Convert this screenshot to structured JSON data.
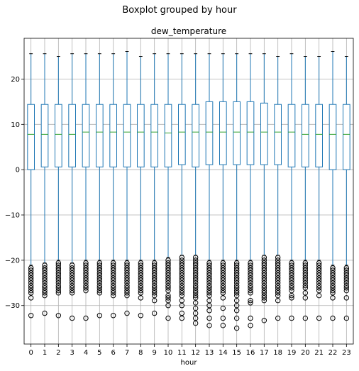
{
  "chart_data": {
    "type": "box",
    "suptitle": "Boxplot grouped by hour",
    "title": "dew_temperature",
    "xlabel": "hour",
    "ylabel": "",
    "ylim": [
      -38.5,
      29
    ],
    "yticks": [
      -30,
      -20,
      -10,
      0,
      10,
      20
    ],
    "grid": true,
    "colors": {
      "box": "#1f77b4",
      "median": "#2ca02c",
      "grid": "#b0b0b0",
      "outlier": "#000000"
    },
    "categories": [
      "0",
      "1",
      "2",
      "3",
      "4",
      "5",
      "6",
      "7",
      "8",
      "9",
      "10",
      "11",
      "12",
      "13",
      "14",
      "15",
      "16",
      "17",
      "18",
      "19",
      "20",
      "21",
      "22",
      "23"
    ],
    "boxes": [
      {
        "whislo": -21.1,
        "q1": 0.0,
        "med": 7.8,
        "q3": 14.4,
        "whishi": 25.6,
        "fliers": [
          -21.7,
          -22.2,
          -22.8,
          -23.3,
          -23.9,
          -24.4,
          -25.0,
          -25.6,
          -26.1,
          -26.7,
          -27.2,
          -28.3,
          -32.2
        ]
      },
      {
        "whislo": -20.6,
        "q1": 0.6,
        "med": 7.8,
        "q3": 14.4,
        "whishi": 25.6,
        "fliers": [
          -21.1,
          -21.7,
          -22.2,
          -22.8,
          -23.3,
          -23.9,
          -24.4,
          -25.0,
          -25.6,
          -26.1,
          -26.7,
          -27.2,
          -27.8,
          -31.7
        ]
      },
      {
        "whislo": -20.0,
        "q1": 0.6,
        "med": 7.8,
        "q3": 14.4,
        "whishi": 25.0,
        "fliers": [
          -20.6,
          -21.1,
          -21.7,
          -22.2,
          -22.8,
          -23.3,
          -23.9,
          -24.4,
          -25.0,
          -25.6,
          -26.1,
          -26.7,
          -27.2,
          -32.2
        ]
      },
      {
        "whislo": -20.6,
        "q1": 0.6,
        "med": 7.8,
        "q3": 14.4,
        "whishi": 25.6,
        "fliers": [
          -21.1,
          -21.7,
          -22.2,
          -22.8,
          -23.3,
          -23.9,
          -24.4,
          -25.0,
          -25.6,
          -26.1,
          -26.7,
          -27.2,
          -32.8
        ]
      },
      {
        "whislo": -20.0,
        "q1": 0.6,
        "med": 8.3,
        "q3": 14.4,
        "whishi": 25.6,
        "fliers": [
          -20.6,
          -21.1,
          -21.7,
          -22.2,
          -22.8,
          -23.3,
          -23.9,
          -24.4,
          -25.0,
          -25.6,
          -26.1,
          -26.7,
          -32.8
        ]
      },
      {
        "whislo": -20.0,
        "q1": 0.6,
        "med": 8.3,
        "q3": 14.4,
        "whishi": 25.6,
        "fliers": [
          -20.6,
          -21.1,
          -21.7,
          -22.2,
          -22.8,
          -23.3,
          -23.9,
          -24.4,
          -25.0,
          -25.6,
          -26.1,
          -26.7,
          -27.2,
          -32.2
        ]
      },
      {
        "whislo": -20.0,
        "q1": 0.6,
        "med": 8.3,
        "q3": 14.4,
        "whishi": 25.6,
        "fliers": [
          -20.6,
          -21.1,
          -21.7,
          -22.2,
          -22.8,
          -23.3,
          -23.9,
          -24.4,
          -25.0,
          -25.6,
          -26.1,
          -26.7,
          -27.2,
          -27.8,
          -32.2
        ]
      },
      {
        "whislo": -20.0,
        "q1": 0.6,
        "med": 8.3,
        "q3": 14.4,
        "whishi": 26.1,
        "fliers": [
          -20.6,
          -21.1,
          -21.7,
          -22.2,
          -22.8,
          -23.3,
          -23.9,
          -24.4,
          -25.0,
          -25.6,
          -26.1,
          -26.7,
          -27.2,
          -27.8,
          -31.7
        ]
      },
      {
        "whislo": -20.0,
        "q1": 0.6,
        "med": 8.3,
        "q3": 14.4,
        "whishi": 25.0,
        "fliers": [
          -20.6,
          -21.1,
          -21.7,
          -22.2,
          -22.8,
          -23.3,
          -23.9,
          -24.4,
          -25.0,
          -25.6,
          -26.1,
          -26.7,
          -27.2,
          -28.3,
          -32.2
        ]
      },
      {
        "whislo": -20.0,
        "q1": 0.6,
        "med": 8.3,
        "q3": 14.4,
        "whishi": 25.6,
        "fliers": [
          -20.6,
          -21.1,
          -21.7,
          -22.2,
          -22.8,
          -23.3,
          -23.9,
          -24.4,
          -25.0,
          -25.6,
          -26.1,
          -26.7,
          -27.2,
          -27.8,
          -28.9,
          -31.7
        ]
      },
      {
        "whislo": -19.4,
        "q1": 0.6,
        "med": 8.1,
        "q3": 14.4,
        "whishi": 25.6,
        "fliers": [
          -20.0,
          -20.6,
          -21.1,
          -21.7,
          -22.2,
          -22.8,
          -23.3,
          -23.9,
          -24.4,
          -25.0,
          -25.6,
          -26.1,
          -26.7,
          -27.8,
          -28.3,
          -28.9,
          -30.0,
          -32.8
        ]
      },
      {
        "whislo": -18.9,
        "q1": 1.1,
        "med": 8.3,
        "q3": 14.4,
        "whishi": 25.6,
        "fliers": [
          -19.4,
          -20.0,
          -20.6,
          -21.1,
          -21.7,
          -22.2,
          -22.8,
          -23.3,
          -23.9,
          -24.4,
          -25.0,
          -25.6,
          -26.1,
          -26.7,
          -27.2,
          -27.8,
          -28.9,
          -30.0,
          -31.7,
          -32.8
        ]
      },
      {
        "whislo": -18.9,
        "q1": 0.6,
        "med": 8.3,
        "q3": 14.4,
        "whishi": 25.6,
        "fliers": [
          -19.4,
          -20.0,
          -20.6,
          -21.1,
          -21.7,
          -22.2,
          -22.8,
          -23.3,
          -23.9,
          -24.4,
          -25.0,
          -25.6,
          -26.1,
          -26.7,
          -27.2,
          -27.8,
          -28.3,
          -29.4,
          -30.6,
          -31.7,
          -32.8,
          -33.9
        ]
      },
      {
        "whislo": -20.0,
        "q1": 1.1,
        "med": 8.3,
        "q3": 15.0,
        "whishi": 25.6,
        "fliers": [
          -20.6,
          -21.1,
          -21.7,
          -22.2,
          -22.8,
          -23.3,
          -23.9,
          -24.4,
          -25.0,
          -25.6,
          -26.1,
          -26.7,
          -27.2,
          -27.8,
          -28.9,
          -30.0,
          -31.1,
          -32.8,
          -34.4
        ]
      },
      {
        "whislo": -20.0,
        "q1": 1.1,
        "med": 8.3,
        "q3": 15.0,
        "whishi": 25.6,
        "fliers": [
          -20.6,
          -21.1,
          -21.7,
          -22.2,
          -22.8,
          -23.3,
          -23.9,
          -24.4,
          -25.0,
          -25.6,
          -26.1,
          -26.7,
          -27.2,
          -28.3,
          -30.6,
          -32.8,
          -34.4
        ]
      },
      {
        "whislo": -20.0,
        "q1": 1.1,
        "med": 8.3,
        "q3": 15.0,
        "whishi": 25.6,
        "fliers": [
          -20.6,
          -21.1,
          -21.7,
          -22.2,
          -22.8,
          -23.3,
          -23.9,
          -24.4,
          -25.0,
          -25.6,
          -26.1,
          -26.7,
          -27.2,
          -27.8,
          -28.9,
          -30.0,
          -31.1,
          -32.8,
          -35.0
        ]
      },
      {
        "whislo": -20.0,
        "q1": 1.1,
        "med": 8.3,
        "q3": 15.0,
        "whishi": 25.6,
        "fliers": [
          -20.6,
          -21.1,
          -21.7,
          -22.2,
          -22.8,
          -23.3,
          -23.9,
          -24.4,
          -25.0,
          -25.6,
          -26.1,
          -26.7,
          -27.2,
          -28.9,
          -29.4,
          -32.8,
          -34.4
        ]
      },
      {
        "whislo": -18.9,
        "q1": 1.1,
        "med": 8.3,
        "q3": 14.7,
        "whishi": 25.6,
        "fliers": [
          -19.4,
          -20.0,
          -20.6,
          -21.1,
          -21.7,
          -22.2,
          -22.8,
          -23.3,
          -23.9,
          -24.4,
          -25.0,
          -25.6,
          -26.1,
          -26.7,
          -27.2,
          -27.8,
          -28.3,
          -28.9,
          -33.3
        ]
      },
      {
        "whislo": -18.9,
        "q1": 1.1,
        "med": 8.3,
        "q3": 14.4,
        "whishi": 25.0,
        "fliers": [
          -19.4,
          -20.0,
          -20.6,
          -21.1,
          -21.7,
          -22.2,
          -22.8,
          -23.3,
          -23.9,
          -24.4,
          -25.0,
          -25.6,
          -26.1,
          -26.7,
          -27.2,
          -27.8,
          -28.9,
          -32.8
        ]
      },
      {
        "whislo": -20.0,
        "q1": 0.6,
        "med": 8.3,
        "q3": 14.4,
        "whishi": 25.6,
        "fliers": [
          -20.6,
          -21.1,
          -21.7,
          -22.2,
          -22.8,
          -23.3,
          -23.9,
          -24.4,
          -25.0,
          -25.6,
          -26.1,
          -26.7,
          -27.8,
          -28.3,
          -32.8
        ]
      },
      {
        "whislo": -20.0,
        "q1": 0.6,
        "med": 7.8,
        "q3": 14.4,
        "whishi": 25.0,
        "fliers": [
          -20.6,
          -21.1,
          -21.7,
          -22.2,
          -22.8,
          -23.3,
          -23.9,
          -24.4,
          -25.0,
          -25.6,
          -26.1,
          -27.2,
          -28.3,
          -32.8
        ]
      },
      {
        "whislo": -20.0,
        "q1": 0.6,
        "med": 7.8,
        "q3": 14.4,
        "whishi": 25.0,
        "fliers": [
          -20.6,
          -21.1,
          -21.7,
          -22.2,
          -22.8,
          -23.3,
          -23.9,
          -24.4,
          -25.0,
          -25.6,
          -26.1,
          -26.7,
          -27.8,
          -32.8
        ]
      },
      {
        "whislo": -21.1,
        "q1": 0.0,
        "med": 7.8,
        "q3": 14.4,
        "whishi": 26.1,
        "fliers": [
          -21.7,
          -22.2,
          -22.8,
          -23.3,
          -23.9,
          -24.4,
          -25.0,
          -25.6,
          -26.1,
          -26.7,
          -27.2,
          -28.3,
          -32.8
        ]
      },
      {
        "whislo": -21.1,
        "q1": 0.0,
        "med": 7.8,
        "q3": 14.4,
        "whishi": 25.0,
        "fliers": [
          -21.7,
          -22.2,
          -22.8,
          -23.3,
          -23.9,
          -24.4,
          -25.0,
          -25.6,
          -26.1,
          -26.7,
          -28.3,
          -32.8
        ]
      }
    ]
  }
}
